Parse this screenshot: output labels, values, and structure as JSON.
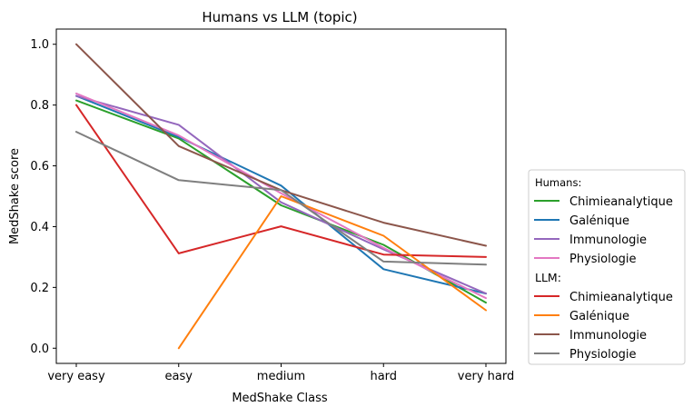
{
  "chart_data": {
    "type": "line",
    "title": "Humans vs LLM (topic)",
    "xlabel": "MedShake Class",
    "ylabel": "MedShake score",
    "categories": [
      "very easy",
      "easy",
      "medium",
      "hard",
      "very hard"
    ],
    "ylim": [
      -0.05,
      1.05
    ],
    "yticks": [
      "0.0",
      "0.2",
      "0.4",
      "0.6",
      "0.8",
      "1.0"
    ],
    "grid": false,
    "legend_placement": "outside right",
    "legend": {
      "groups": [
        {
          "heading": "Humans:",
          "series": [
            {
              "name": "Chimieanalytique",
              "color": "#2ca02c",
              "values": [
                0.815,
                0.69,
                0.47,
                0.34,
                0.15
              ]
            },
            {
              "name": "Galénique",
              "color": "#1f77b4",
              "values": [
                0.83,
                0.695,
                0.535,
                0.26,
                0.18
              ]
            },
            {
              "name": "Immunologie",
              "color": "#9467bd",
              "values": [
                0.83,
                0.735,
                0.48,
                0.325,
                0.18
              ]
            },
            {
              "name": "Physiologie",
              "color": "#e377c2",
              "values": [
                0.838,
                0.7,
                0.51,
                0.33,
                0.165
              ]
            }
          ]
        },
        {
          "heading": "LLM:",
          "series": [
            {
              "name": "Chimieanalytique",
              "color": "#d62728",
              "values": [
                0.8,
                0.312,
                0.401,
                0.308,
                0.3
              ]
            },
            {
              "name": "Galénique",
              "color": "#ff7f0e",
              "values": [
                null,
                0.0,
                0.5,
                0.37,
                0.125
              ]
            },
            {
              "name": "Immunologie",
              "color": "#8c564b",
              "values": [
                1.0,
                0.665,
                0.52,
                0.413,
                0.337
              ]
            },
            {
              "name": "Physiologie",
              "color": "#7f7f7f",
              "values": [
                0.712,
                0.553,
                0.52,
                0.285,
                0.275
              ]
            }
          ]
        }
      ]
    }
  }
}
